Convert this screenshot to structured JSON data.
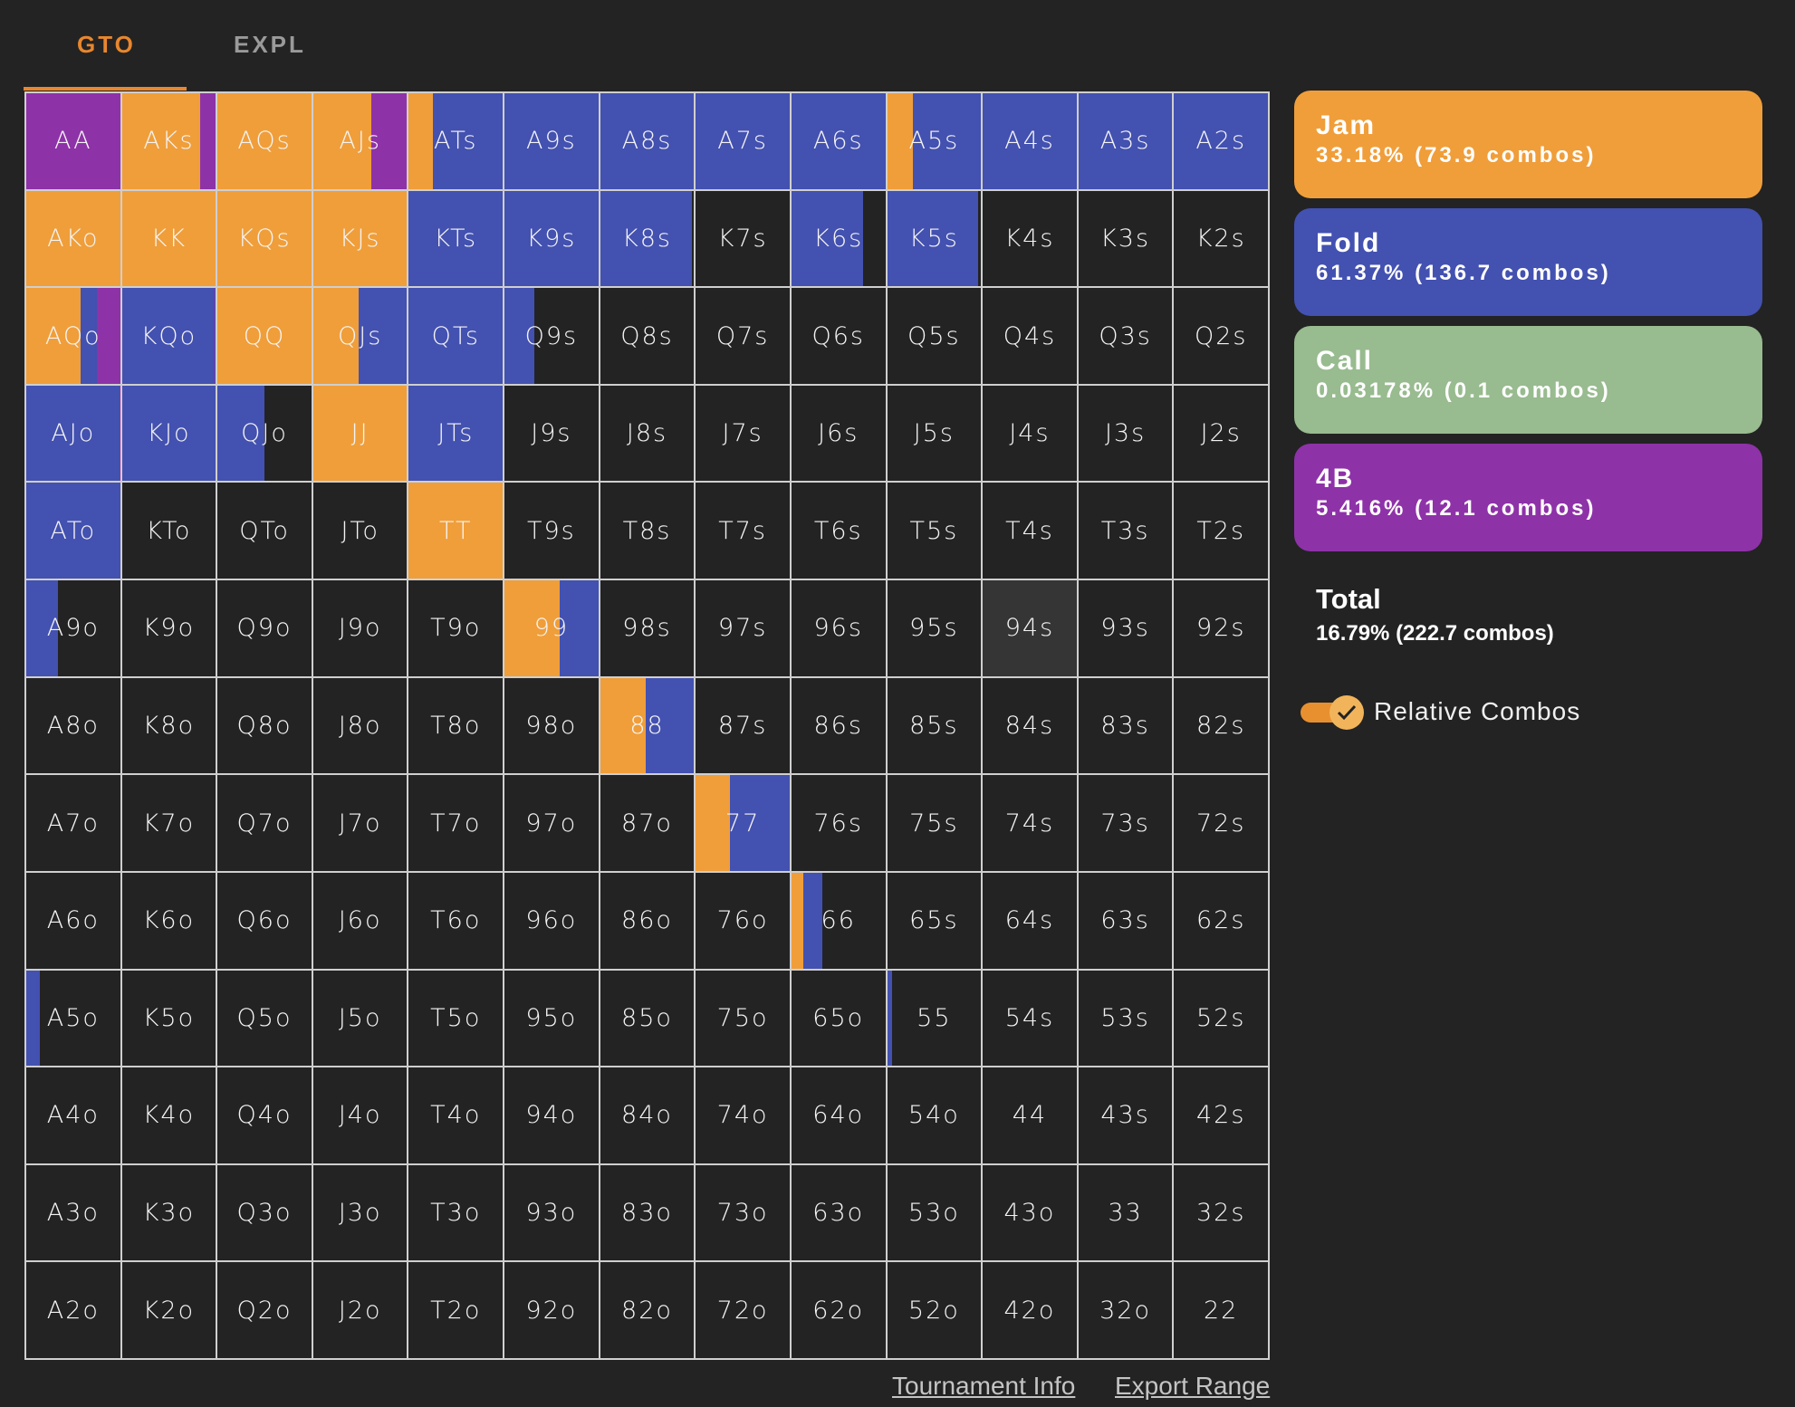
{
  "tabs": {
    "gto": "GTO",
    "expl": "EXPL",
    "active": "GTO"
  },
  "colors": {
    "jam": "#f09e3a",
    "fold": "#4351b0",
    "call": "#98bb8f",
    "b4": "#8e32a8",
    "empty": "#232323",
    "hover": "#353535"
  },
  "actions": [
    {
      "name": "Jam",
      "stat": "33.18% (73.9 combos)",
      "color": "#f09e3a"
    },
    {
      "name": "Fold",
      "stat": "61.37% (136.7 combos)",
      "color": "#4351b0"
    },
    {
      "name": "Call",
      "stat": "0.03178% (0.1 combos)",
      "color": "#98bb8f"
    },
    {
      "name": "4B",
      "stat": "5.416% (12.1 combos)",
      "color": "#8e32a8"
    }
  ],
  "total": {
    "label": "Total",
    "stat": "16.79% (222.7 combos)"
  },
  "relative_combos": {
    "label": "Relative Combos",
    "checked": true
  },
  "footer": {
    "tournament_info": "Tournament Info",
    "export_range": "Export Range"
  },
  "hovered_hand": "94s",
  "grid": {
    "rows": [
      [
        "AA",
        "AKs",
        "AQs",
        "AJs",
        "ATs",
        "A9s",
        "A8s",
        "A7s",
        "A6s",
        "A5s",
        "A4s",
        "A3s",
        "A2s"
      ],
      [
        "AKo",
        "KK",
        "KQs",
        "KJs",
        "KTs",
        "K9s",
        "K8s",
        "K7s",
        "K6s",
        "K5s",
        "K4s",
        "K3s",
        "K2s"
      ],
      [
        "AQo",
        "KQo",
        "QQ",
        "QJs",
        "QTs",
        "Q9s",
        "Q8s",
        "Q7s",
        "Q6s",
        "Q5s",
        "Q4s",
        "Q3s",
        "Q2s"
      ],
      [
        "AJo",
        "KJo",
        "QJo",
        "JJ",
        "JTs",
        "J9s",
        "J8s",
        "J7s",
        "J6s",
        "J5s",
        "J4s",
        "J3s",
        "J2s"
      ],
      [
        "ATo",
        "KTo",
        "QTo",
        "JTo",
        "TT",
        "T9s",
        "T8s",
        "T7s",
        "T6s",
        "T5s",
        "T4s",
        "T3s",
        "T2s"
      ],
      [
        "A9o",
        "K9o",
        "Q9o",
        "J9o",
        "T9o",
        "99",
        "98s",
        "97s",
        "96s",
        "95s",
        "94s",
        "93s",
        "92s"
      ],
      [
        "A8o",
        "K8o",
        "Q8o",
        "J8o",
        "T8o",
        "98o",
        "88",
        "87s",
        "86s",
        "85s",
        "84s",
        "83s",
        "82s"
      ],
      [
        "A7o",
        "K7o",
        "Q7o",
        "J7o",
        "T7o",
        "97o",
        "87o",
        "77",
        "76s",
        "75s",
        "74s",
        "73s",
        "72s"
      ],
      [
        "A6o",
        "K6o",
        "Q6o",
        "J6o",
        "T6o",
        "96o",
        "86o",
        "76o",
        "66",
        "65s",
        "64s",
        "63s",
        "62s"
      ],
      [
        "A5o",
        "K5o",
        "Q5o",
        "J5o",
        "T5o",
        "95o",
        "85o",
        "75o",
        "65o",
        "55",
        "54s",
        "53s",
        "52s"
      ],
      [
        "A4o",
        "K4o",
        "Q4o",
        "J4o",
        "T4o",
        "94o",
        "84o",
        "74o",
        "64o",
        "54o",
        "44",
        "43s",
        "42s"
      ],
      [
        "A3o",
        "K3o",
        "Q3o",
        "J3o",
        "T3o",
        "93o",
        "83o",
        "73o",
        "63o",
        "53o",
        "43o",
        "33",
        "32s"
      ],
      [
        "A2o",
        "K2o",
        "Q2o",
        "J2o",
        "T2o",
        "92o",
        "82o",
        "72o",
        "62o",
        "52o",
        "42o",
        "32o",
        "22"
      ]
    ],
    "frequencies": {
      "AA": {
        "b4": 1.0
      },
      "AKs": {
        "jam": 0.83,
        "b4": 0.17
      },
      "AQs": {
        "jam": 1.0
      },
      "AJs": {
        "jam": 0.62,
        "b4": 0.38
      },
      "ATs": {
        "jam": 0.26,
        "fold": 0.74
      },
      "A9s": {
        "fold": 1.0
      },
      "A8s": {
        "fold": 1.0
      },
      "A7s": {
        "fold": 1.0
      },
      "A6s": {
        "fold": 1.0
      },
      "A5s": {
        "jam": 0.27,
        "fold": 0.73
      },
      "A4s": {
        "fold": 1.0
      },
      "A3s": {
        "fold": 1.0
      },
      "A2s": {
        "fold": 1.0
      },
      "AKo": {
        "jam": 1.0
      },
      "KK": {
        "jam": 1.0
      },
      "KQs": {
        "jam": 1.0
      },
      "KJs": {
        "jam": 1.0
      },
      "KTs": {
        "fold": 1.0
      },
      "K9s": {
        "fold": 1.0
      },
      "K8s": {
        "fold": 0.98
      },
      "K6s": {
        "fold": 0.76
      },
      "K5s": {
        "fold": 0.97
      },
      "AQo": {
        "jam": 0.58,
        "fold": 0.17,
        "b4": 0.25
      },
      "KQo": {
        "fold": 0.99,
        "b4": 0.01
      },
      "QQ": {
        "jam": 1.0
      },
      "QJs": {
        "jam": 0.48,
        "fold": 0.52
      },
      "QTs": {
        "fold": 1.0
      },
      "Q9s": {
        "fold": 0.32
      },
      "AJo": {
        "fold": 0.99,
        "b4": 0.01
      },
      "KJo": {
        "fold": 1.0
      },
      "QJo": {
        "fold": 0.5
      },
      "JJ": {
        "jam": 1.0
      },
      "JTs": {
        "fold": 1.0
      },
      "ATo": {
        "fold": 1.0
      },
      "TT": {
        "jam": 1.0
      },
      "A9o": {
        "fold": 0.34
      },
      "99": {
        "jam": 0.59,
        "fold": 0.41
      },
      "88": {
        "jam": 0.49,
        "fold": 0.51
      },
      "77": {
        "jam": 0.36,
        "fold": 0.64
      },
      "66": {
        "jam": 0.13,
        "fold": 0.2
      },
      "A5o": {
        "fold": 0.14
      },
      "55": {
        "fold": 0.05
      }
    }
  }
}
